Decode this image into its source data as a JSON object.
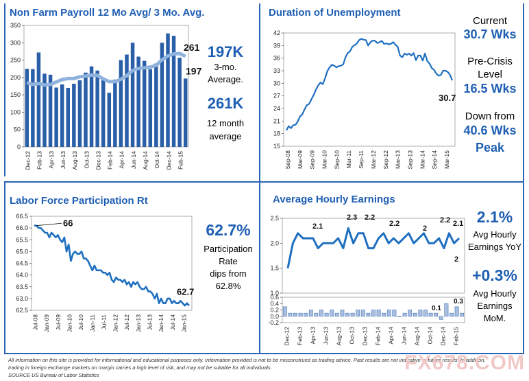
{
  "colors": {
    "title": "#1f5fb3",
    "bar": "#2a5fa8",
    "line": "#8fb3dd",
    "blue": "#1f6fc0"
  },
  "panels": {
    "nfp": {
      "title": "Non Farm Payroll 12 Mo Avg/ 3 Mo. Avg.",
      "stat1": "197K",
      "stat1_desc_a": "3-mo.",
      "stat1_desc_b": "Average.",
      "stat2": "261K",
      "stat2_desc_a": "12 month",
      "stat2_desc_b": "average"
    },
    "dur": {
      "title": "Duration of Unemployment",
      "l1": "Current",
      "l2": "30.7 Wks",
      "l3": "Pre-Crisis",
      "l4": "Level",
      "l5": "16.5 Wks",
      "l6": "Down from",
      "l7": "40.6 Wks",
      "l8": "Peak"
    },
    "lfp": {
      "title": "Labor Force Participation Rt",
      "s1": "62.7%",
      "s2": "Participation",
      "s3": "Rate",
      "s4": "dips from",
      "s5": "62.8%"
    },
    "ahe": {
      "title": "Average Hourly Earnings",
      "s1": "2.1%",
      "s2": "Avg Hourly",
      "s3": "Earnings YoY",
      "s4": "+0.3%",
      "s5": "Avg Hourly",
      "s6": "Earnings",
      "s7": "MoM."
    }
  },
  "footnote": {
    "line1": "All information on this site is provided for informational and educational purposes only. Information provided is not to be misconstrued as trading advice.  Past results are not indicative of future results.  In addition,",
    "line2": "trading in foreign exchange markets on margin carries a high level of risk, and may not be suitable for all individuals.",
    "line3": "SOURCE US Bureau of Labor Statistics"
  },
  "watermark": "FX678.COM",
  "chart_data": [
    {
      "id": "nfp",
      "type": "bar",
      "title": "Non Farm Payroll 12 Mo Avg/ 3 Mo. Avg.",
      "ylim": [
        0,
        350
      ],
      "yticks": [
        0,
        50,
        100,
        150,
        200,
        250,
        300,
        350
      ],
      "categories": [
        "Dec-12",
        "Jan-13",
        "Feb-13",
        "Mar-13",
        "Apr-13",
        "May-13",
        "Jun-13",
        "Jul-13",
        "Aug-13",
        "Sep-13",
        "Oct-13",
        "Nov-13",
        "Dec-13",
        "Jan-14",
        "Feb-14",
        "Mar-14",
        "Apr-14",
        "May-14",
        "Jun-14",
        "Jul-14",
        "Aug-14",
        "Sep-14",
        "Oct-14",
        "Nov-14",
        "Dec-14",
        "Jan-15",
        "Feb-15",
        "Mar-15"
      ],
      "xticklabels": [
        "Dec-12",
        "Feb-13",
        "Apr-13",
        "Jun-13",
        "Aug-13",
        "Oct-13",
        "Dec-13",
        "Feb-14",
        "Apr-14",
        "Jun-14",
        "Aug-14",
        "Oct-14",
        "Dec-14",
        "Feb-15"
      ],
      "series": [
        {
          "name": "Monthly",
          "values": [
            225,
            224,
            272,
            211,
            208,
            171,
            180,
            170,
            182,
            192,
            214,
            232,
            220,
            197,
            156,
            194,
            250,
            266,
            300,
            260,
            248,
            224,
            240,
            300,
            327,
            320,
            257,
            197
          ]
        },
        {
          "name": "12 Mo Avg",
          "values": [
            185,
            180,
            183,
            178,
            180,
            187,
            194,
            197,
            197,
            202,
            204,
            207,
            206,
            196,
            188,
            188,
            195,
            205,
            220,
            226,
            228,
            230,
            235,
            251,
            262,
            268,
            269,
            261
          ]
        }
      ],
      "annotations": [
        {
          "text": "261",
          "index": 27,
          "value": 261
        },
        {
          "text": "197",
          "index": 27,
          "value": 197
        }
      ]
    },
    {
      "id": "dur",
      "type": "line",
      "title": "Duration of Unemployment",
      "ylim": [
        15,
        42
      ],
      "yticks": [
        15,
        18,
        21,
        24,
        27,
        30,
        33,
        36,
        39,
        42
      ],
      "xticklabels": [
        "Sep-08",
        "Mar-09",
        "Sep-09",
        "Mar-10",
        "Sep-10",
        "Mar-11",
        "Sep-11",
        "Mar-12",
        "Sep-12",
        "Mar-13",
        "Sep-13",
        "Mar-14",
        "Sep-14",
        "Mar-15"
      ],
      "values": [
        18.8,
        19.8,
        19.3,
        20.0,
        20.1,
        20.9,
        22.1,
        22.6,
        23.8,
        24.8,
        25.1,
        26.2,
        27.2,
        28.5,
        29.5,
        30.2,
        29.8,
        31.2,
        32.9,
        33.8,
        34.4,
        34.2,
        33.8,
        34.1,
        34.2,
        34.5,
        36.2,
        37.2,
        37.6,
        38.7,
        39.1,
        39.5,
        40.3,
        40.6,
        40.4,
        40.3,
        39.0,
        39.8,
        40.2,
        40.1,
        39.6,
        39.8,
        40.1,
        39.4,
        39.5,
        39.3,
        39.4,
        39.8,
        39.2,
        38.7,
        36.6,
        36.2,
        37.1,
        36.8,
        37.1,
        36.6,
        37.2,
        35.5,
        36.6,
        36.6,
        35.4,
        37.1,
        35.3,
        34.7,
        33.6,
        33.2,
        32.3,
        31.8,
        32.0,
        33.0,
        33.0,
        32.7,
        32.0,
        30.7
      ],
      "annotations": [
        {
          "text": "30.7",
          "value": 30.7
        }
      ]
    },
    {
      "id": "lfp",
      "type": "line",
      "title": "Labor Force Participation Rt",
      "ylim": [
        62.5,
        66.5
      ],
      "yticks": [
        62.5,
        63,
        63.5,
        64,
        64.5,
        65,
        65.5,
        66,
        66.5
      ],
      "xticklabels": [
        "Jul-08",
        "Jan-09",
        "Jul-09",
        "Jan-10",
        "Jul-10",
        "Jan-11",
        "Jul-11",
        "Jan-12",
        "Jul-12",
        "Jan-13",
        "Jul-13",
        "Jan-14",
        "Jul-14",
        "Jan-15"
      ],
      "values": [
        66.1,
        66.1,
        66.0,
        66.0,
        65.9,
        65.8,
        65.8,
        65.6,
        65.8,
        65.7,
        65.6,
        65.7,
        65.5,
        65.4,
        65.6,
        65.0,
        65.3,
        64.6,
        64.9,
        65.0,
        64.9,
        64.9,
        65.0,
        64.7,
        64.7,
        64.6,
        64.4,
        64.2,
        64.4,
        64.2,
        64.2,
        64.2,
        64.1,
        64.1,
        64.0,
        64.1,
        63.8,
        63.7,
        63.9,
        63.8,
        63.8,
        63.7,
        63.8,
        63.6,
        63.7,
        63.5,
        63.7,
        63.6,
        63.7,
        63.5,
        63.4,
        63.4,
        63.5,
        63.3,
        63.3,
        63.2,
        63.0,
        63.2,
        62.8,
        63.0,
        62.8,
        62.8,
        63.0,
        63.0,
        62.8,
        62.9,
        62.8,
        62.8,
        62.9,
        62.8,
        62.7,
        62.8,
        62.7
      ],
      "annotations": [
        {
          "text": "66",
          "value": 66
        },
        {
          "text": "62.7",
          "value": 62.7
        }
      ]
    },
    {
      "id": "ahe_yoy",
      "type": "line",
      "title": "Average Hourly Earnings",
      "ylim": [
        1,
        2.5
      ],
      "yticks": [
        1,
        1.5,
        2,
        2.5
      ],
      "values": [
        1.5,
        2.0,
        2.2,
        2.1,
        2.1,
        2.1,
        1.9,
        2.0,
        2.0,
        2.0,
        2.1,
        1.9,
        2.3,
        2.0,
        2.2,
        2.2,
        1.9,
        1.9,
        2.1,
        2.2,
        2.0,
        2.1,
        2.0,
        2.1,
        2.2,
        2.0,
        2.1,
        2.2,
        2.0,
        2.0,
        2.1,
        1.9,
        2.2,
        2.0,
        2.1
      ],
      "annotations": [
        {
          "text": "2.1",
          "value": 2.1
        },
        {
          "text": "2.3",
          "value": 2.3
        },
        {
          "text": "2.2",
          "value": 2.2
        },
        {
          "text": "2.2",
          "value": 2.2
        },
        {
          "text": "2",
          "value": 2
        },
        {
          "text": "2.2",
          "value": 2.2
        },
        {
          "text": "2.1",
          "value": 2.1
        },
        {
          "text": "2",
          "value": 2
        }
      ]
    },
    {
      "id": "ahe_mom",
      "type": "bar",
      "title": "Average Hourly Earnings MoM",
      "ylim": [
        -0.2,
        0.6
      ],
      "yticks": [
        -0.2,
        0,
        0.2,
        0.4,
        0.6
      ],
      "xticklabels": [
        "Dec-12",
        "Feb-13",
        "Apr-13",
        "Jun-13",
        "Aug-13",
        "Oct-13",
        "Dec-13",
        "Feb-14",
        "Apr-14",
        "Jun-14",
        "Aug-14",
        "Oct-14",
        "Dec-14",
        "Feb-15"
      ],
      "values": [
        0.3,
        0.1,
        0.1,
        0.1,
        0.1,
        0.2,
        0.1,
        0.2,
        0.1,
        0.2,
        0.1,
        0.2,
        0.1,
        0.1,
        0.2,
        0.2,
        0.1,
        0.2,
        0.2,
        0.1,
        0.2,
        0.2,
        0.0,
        0.1,
        0.2,
        0.1,
        0.2,
        0.2,
        0.1,
        0.1,
        -0.1,
        0.4,
        0.1,
        0.3,
        0.1
      ],
      "annotations": [
        {
          "text": "0.1",
          "value": 0.1
        },
        {
          "text": "0.3",
          "value": 0.3
        }
      ]
    }
  ]
}
